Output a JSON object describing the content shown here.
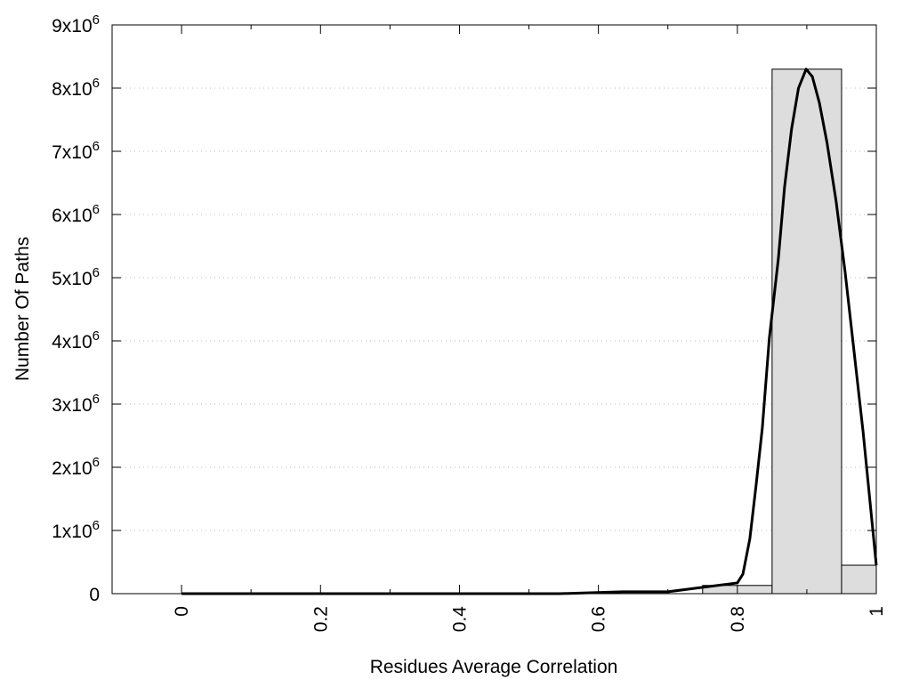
{
  "chart_data": {
    "type": "bar",
    "title": "",
    "xlabel": "Residues Average Correlation",
    "ylabel": "Number Of Paths",
    "xlim": [
      -0.1,
      1.0
    ],
    "ylim": [
      0,
      9000000
    ],
    "grid": "horizontal dotted",
    "legend": "none",
    "x_ticks": [
      0,
      0.2,
      0.4,
      0.6,
      0.8,
      1
    ],
    "x_tick_labels": [
      "0",
      "0.2",
      "0.4",
      "0.6",
      "0.8",
      "1"
    ],
    "x_minor_ticks": [
      0.1,
      0.3,
      0.5,
      0.7,
      0.9
    ],
    "y_ticks": [
      0,
      1000000,
      2000000,
      3000000,
      4000000,
      5000000,
      6000000,
      7000000,
      8000000,
      9000000
    ],
    "y_tick_labels": [
      {
        "base": "0",
        "exp": ""
      },
      {
        "base": "1x10",
        "exp": "6"
      },
      {
        "base": "2x10",
        "exp": "6"
      },
      {
        "base": "3x10",
        "exp": "6"
      },
      {
        "base": "4x10",
        "exp": "6"
      },
      {
        "base": "5x10",
        "exp": "6"
      },
      {
        "base": "6x10",
        "exp": "6"
      },
      {
        "base": "7x10",
        "exp": "6"
      },
      {
        "base": "8x10",
        "exp": "6"
      },
      {
        "base": "9x10",
        "exp": "6"
      }
    ],
    "bars": [
      {
        "x0": 0.75,
        "x1": 0.85,
        "value": 130000
      },
      {
        "x0": 0.85,
        "x1": 0.95,
        "value": 8300000
      },
      {
        "x0": 0.95,
        "x1": 1.05,
        "value": 450000
      }
    ],
    "curve": {
      "x": [
        0,
        0.545,
        0.635,
        0.7,
        0.75,
        0.8,
        0.808,
        0.818,
        0.827,
        0.836,
        0.846,
        0.859,
        0.868,
        0.878,
        0.888,
        0.899,
        0.908,
        0.918,
        0.929,
        0.942,
        0.955,
        0.968,
        0.981,
        1.0
      ],
      "y": [
        0,
        0,
        30000,
        30000,
        100000,
        170000,
        310000,
        870000,
        1720000,
        2630000,
        4040000,
        5300000,
        6440000,
        7350000,
        8000000,
        8300000,
        8180000,
        7770000,
        7140000,
        6220000,
        5100000,
        3830000,
        2560000,
        450000
      ]
    },
    "colors": {
      "bar_fill": "#dddddd",
      "bar_stroke": "#000000",
      "curve": "#000000",
      "grid": "#bbbbbb"
    }
  }
}
